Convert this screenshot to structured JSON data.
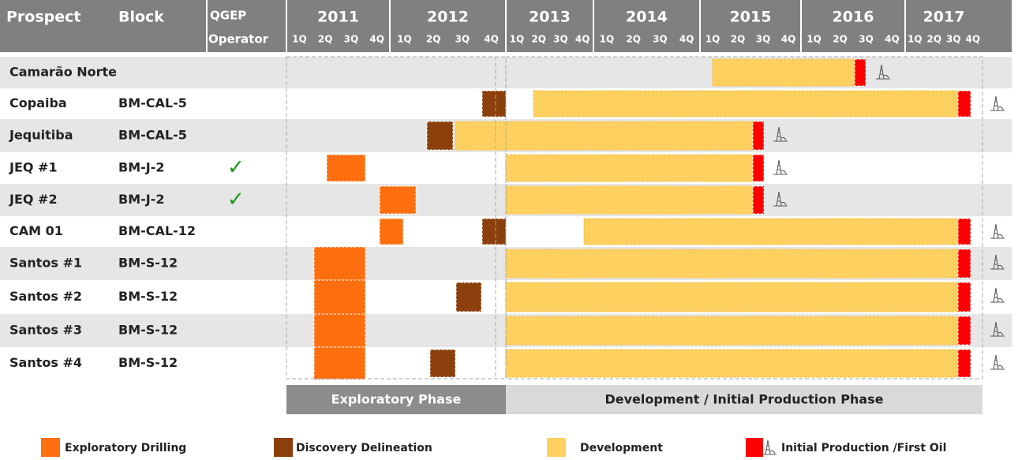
{
  "header": {
    "prospect": "Prospect",
    "block": "Block",
    "operator_line1": "QGEP",
    "operator_line2": "Operator",
    "years": [
      "2011",
      "2012",
      "2013",
      "2014",
      "2015",
      "2016",
      "2017"
    ],
    "quarters": [
      "1Q",
      "2Q",
      "3Q",
      "4Q"
    ]
  },
  "rows": [
    {
      "prospect": "Camarão Norte",
      "block": "",
      "operator": ""
    },
    {
      "prospect": "Copaiba",
      "block": "BM-CAL-5",
      "operator": ""
    },
    {
      "prospect": "Jequitiba",
      "block": "BM-CAL-5",
      "operator": ""
    },
    {
      "prospect": "JEQ #1",
      "block": "BM-J-2",
      "operator": "✓"
    },
    {
      "prospect": "JEQ #2",
      "block": "BM-J-2",
      "operator": "✓"
    },
    {
      "prospect": "CAM 01",
      "block": "BM-CAL-12",
      "operator": ""
    },
    {
      "prospect": "Santos #1",
      "block": "BM-S-12",
      "operator": ""
    },
    {
      "prospect": "Santos #2",
      "block": "BM-S-12",
      "operator": ""
    },
    {
      "prospect": "Santos #3",
      "block": "BM-S-12",
      "operator": ""
    },
    {
      "prospect": "Santos #4",
      "block": "BM-S-12",
      "operator": ""
    }
  ],
  "phases": [
    "Exploratory Phase",
    "Development / Initial Production Phase"
  ],
  "legend": [
    "Exploratory Drilling",
    "Discovery Delineation",
    "Development",
    "Initial Production /First Oil"
  ]
}
